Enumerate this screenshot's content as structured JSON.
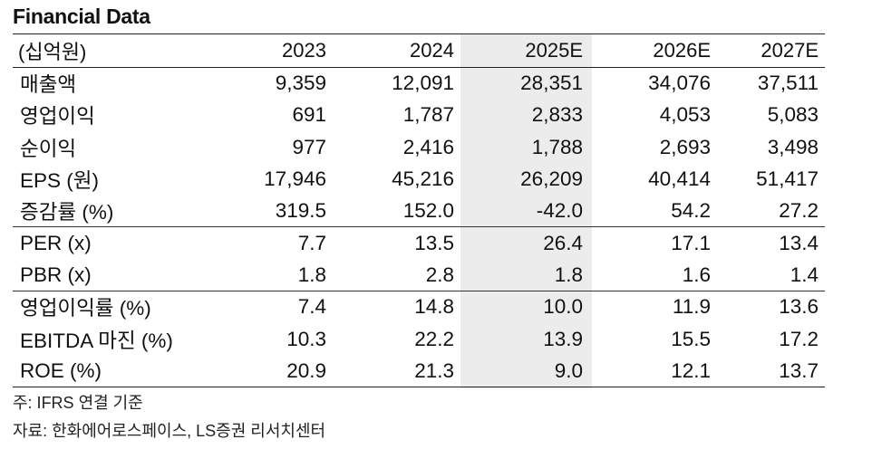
{
  "title": "Financial Data",
  "table": {
    "header": [
      "(십억원)",
      "2023",
      "2024",
      "2025E",
      "2026E",
      "2027E"
    ],
    "rows": [
      [
        "매출액",
        "9,359",
        "12,091",
        "28,351",
        "34,076",
        "37,511"
      ],
      [
        "영업이익",
        "691",
        "1,787",
        "2,833",
        "4,053",
        "5,083"
      ],
      [
        "순이익",
        "977",
        "2,416",
        "1,788",
        "2,693",
        "3,498"
      ],
      [
        "EPS (원)",
        "17,946",
        "45,216",
        "26,209",
        "40,414",
        "51,417"
      ],
      [
        "증감률 (%)",
        "319.5",
        "152.0",
        "-42.0",
        "54.2",
        "27.2"
      ],
      [
        "PER (x)",
        "7.7",
        "13.5",
        "26.4",
        "17.1",
        "13.4"
      ],
      [
        "PBR (x)",
        "1.8",
        "2.8",
        "1.8",
        "1.6",
        "1.4"
      ],
      [
        "영업이익률 (%)",
        "7.4",
        "14.8",
        "10.0",
        "11.9",
        "13.6"
      ],
      [
        "EBITDA 마진 (%)",
        "10.3",
        "22.2",
        "13.9",
        "15.5",
        "17.2"
      ],
      [
        "ROE (%)",
        "20.9",
        "21.3",
        "9.0",
        "12.1",
        "13.7"
      ]
    ]
  },
  "notes": {
    "basis": "주: IFRS 연결 기준",
    "source": "자료: 한화에어로스페이스, LS증권 리서치센터"
  }
}
